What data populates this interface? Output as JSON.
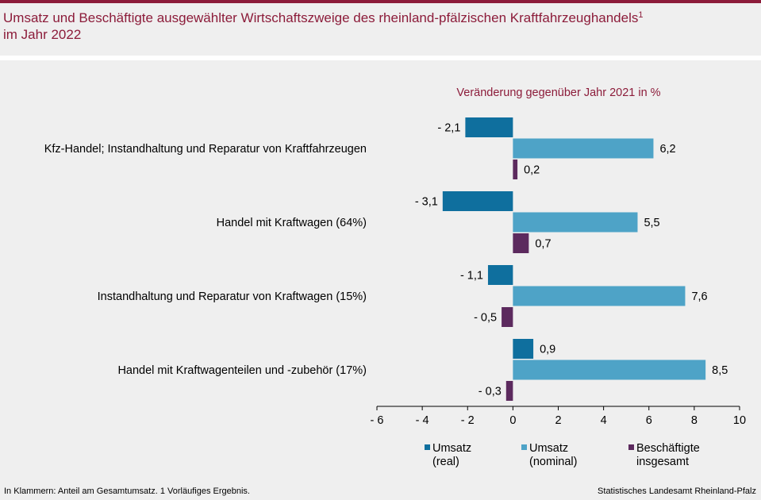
{
  "header": {
    "title_line1": "Umsatz und Beschäftigte ausgewählter Wirtschaftszweige des rheinland-pfälzischen Kraftfahrzeughandels",
    "title_sup": "1",
    "title_line2": "im Jahr 2022"
  },
  "footer": {
    "footnote": "In Klammern: Anteil am Gesamtumsatz. 1 Vorläufiges Ergebnis.",
    "source": "Statistisches Landesamt Rheinland-Pfalz"
  },
  "chart_data": {
    "type": "bar",
    "orientation": "horizontal",
    "title": "Veränderung gegenüber Jahr 2021 in %",
    "categories": [
      "Kfz-Handel; Instandhaltung und Reparatur von Kraftfahrzeugen",
      "Handel mit Kraftwagen (64%)",
      "Instandhaltung und Reparatur von Kraftwagen (15%)",
      "Handel mit Kraftwagenteilen und -zubehör (17%)"
    ],
    "series": [
      {
        "name": "Umsatz (real)",
        "legend_lines": [
          "Umsatz",
          "(real)"
        ],
        "color": "#0f6f9e",
        "values": [
          -2.1,
          -3.1,
          -1.1,
          0.9
        ],
        "labels": [
          "- 2,1",
          "- 3,1",
          "- 1,1",
          "0,9"
        ]
      },
      {
        "name": "Umsatz (nominal)",
        "legend_lines": [
          "Umsatz",
          "(nominal)"
        ],
        "color": "#4ea3c7",
        "values": [
          6.2,
          5.5,
          7.6,
          8.5
        ],
        "labels": [
          "6,2",
          "5,5",
          "7,6",
          "8,5"
        ]
      },
      {
        "name": "Beschäftigte insgesamt",
        "legend_lines": [
          "Beschäftigte",
          "insgesamt"
        ],
        "color": "#5c2a5e",
        "values": [
          0.2,
          0.7,
          -0.5,
          -0.3
        ],
        "labels": [
          "0,2",
          "0,7",
          "- 0,5",
          "- 0,3"
        ]
      }
    ],
    "xlim": [
      -6,
      10
    ],
    "xticks": [
      -6,
      -4,
      -2,
      0,
      2,
      4,
      6,
      8,
      10
    ],
    "xtick_labels": [
      "- 6",
      "- 4",
      "- 2",
      "0",
      "2",
      "4",
      "6",
      "8",
      "10"
    ],
    "grid": false,
    "legend_position": "bottom"
  }
}
